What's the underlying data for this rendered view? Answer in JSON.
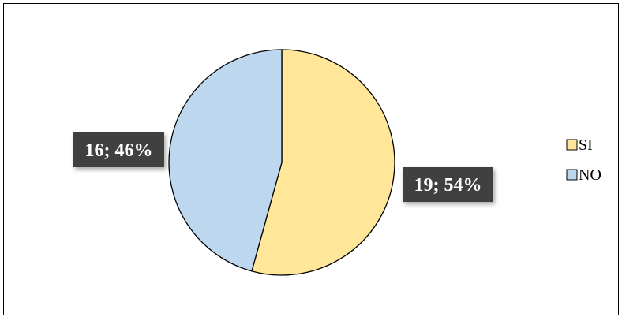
{
  "chart_data": {
    "type": "pie",
    "title": "",
    "start_angle_deg": 0,
    "direction": "clockwise",
    "label_format": "value; percent",
    "legend_position": "right",
    "slices": [
      {
        "label": "SI",
        "value": 19,
        "percent": 54,
        "display": "19; 54%",
        "color": "#FFE699"
      },
      {
        "label": "NO",
        "value": 16,
        "percent": 46,
        "display": "16; 46%",
        "color": "#BDD7EE"
      }
    ],
    "label_box_color": "#404040"
  }
}
